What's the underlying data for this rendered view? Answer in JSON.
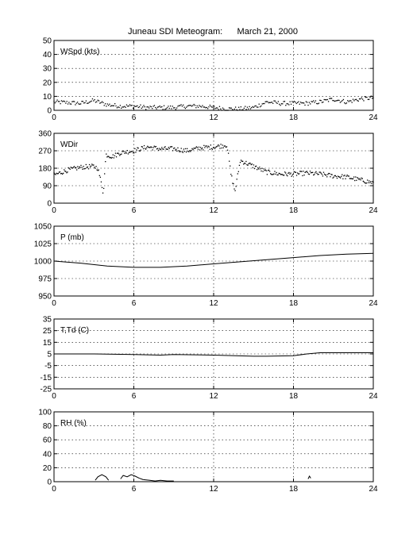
{
  "title": "Juneau SDI Meteogram:      March 21, 2000",
  "chart_data": [
    {
      "type": "scatter",
      "label": "WSpd (kts)",
      "xlim": [
        0,
        24
      ],
      "ylim": [
        0,
        50
      ],
      "xticks": [
        0,
        6,
        12,
        18,
        24
      ],
      "yticks": [
        0,
        10,
        20,
        30,
        40,
        50
      ],
      "grid": true,
      "keypoints": [
        [
          0,
          6
        ],
        [
          2,
          5
        ],
        [
          3,
          7
        ],
        [
          4,
          4
        ],
        [
          5,
          3
        ],
        [
          6,
          3
        ],
        [
          7,
          2
        ],
        [
          8,
          2
        ],
        [
          9,
          2
        ],
        [
          10,
          3
        ],
        [
          11,
          3
        ],
        [
          12,
          2
        ],
        [
          13,
          1
        ],
        [
          14,
          1
        ],
        [
          15,
          2
        ],
        [
          16,
          6
        ],
        [
          17,
          5
        ],
        [
          18,
          5
        ],
        [
          19,
          5
        ],
        [
          20,
          6
        ],
        [
          21,
          8
        ],
        [
          22,
          6
        ],
        [
          23,
          8
        ],
        [
          24,
          9
        ]
      ],
      "noise": 1.5,
      "n_points": 300
    },
    {
      "type": "scatter",
      "label": "WDir",
      "xlim": [
        0,
        24
      ],
      "ylim": [
        0,
        360
      ],
      "xticks": [
        0,
        6,
        12,
        18,
        24
      ],
      "yticks": [
        0,
        90,
        180,
        270,
        360
      ],
      "grid": true,
      "keypoints": [
        [
          0,
          145
        ],
        [
          1,
          170
        ],
        [
          2,
          185
        ],
        [
          3,
          190
        ],
        [
          3.3,
          180
        ],
        [
          3.6,
          90
        ],
        [
          3.7,
          50
        ],
        [
          3.9,
          250
        ],
        [
          4.4,
          240
        ],
        [
          5,
          260
        ],
        [
          6,
          270
        ],
        [
          7,
          290
        ],
        [
          8,
          280
        ],
        [
          9,
          280
        ],
        [
          10,
          270
        ],
        [
          11,
          285
        ],
        [
          12,
          290
        ],
        [
          13,
          300
        ],
        [
          13.3,
          150
        ],
        [
          13.6,
          60
        ],
        [
          14,
          220
        ],
        [
          15,
          190
        ],
        [
          16,
          160
        ],
        [
          17,
          150
        ],
        [
          18,
          150
        ],
        [
          19,
          155
        ],
        [
          20,
          150
        ],
        [
          21,
          140
        ],
        [
          22,
          135
        ],
        [
          23,
          120
        ],
        [
          24,
          105
        ]
      ],
      "noise": 12,
      "n_points": 380
    },
    {
      "type": "line",
      "label": "P (mb)",
      "xlim": [
        0,
        24
      ],
      "ylim": [
        950,
        1050
      ],
      "xticks": [
        0,
        6,
        12,
        18,
        24
      ],
      "yticks": [
        950,
        975,
        1000,
        1025,
        1050
      ],
      "grid": true,
      "x": [
        0,
        2,
        4,
        6,
        8,
        10,
        12,
        14,
        16,
        18,
        20,
        22,
        24
      ],
      "y": [
        1000,
        997,
        993,
        991,
        991,
        993,
        996,
        999,
        1002,
        1005,
        1008,
        1010,
        1011
      ]
    },
    {
      "type": "line",
      "label": "T,Td (C)",
      "xlim": [
        0,
        24
      ],
      "ylim": [
        -25,
        35
      ],
      "xticks": [
        0,
        6,
        12,
        18,
        24
      ],
      "yticks": [
        -25,
        -15,
        -5,
        5,
        15,
        25,
        35
      ],
      "grid": true,
      "x": [
        0,
        3,
        6,
        8,
        9,
        12,
        15,
        16,
        18,
        19,
        20,
        24
      ],
      "y": [
        5,
        5,
        4.5,
        4,
        4.5,
        4,
        3,
        3,
        3.5,
        5,
        6,
        6
      ]
    },
    {
      "type": "line",
      "label": "RH (%)",
      "xlim": [
        0,
        24
      ],
      "ylim": [
        0,
        100
      ],
      "xticks": [
        0,
        6,
        12,
        18,
        24
      ],
      "yticks": [
        0,
        20,
        40,
        60,
        80,
        100
      ],
      "grid": true,
      "segments": [
        {
          "x": [
            3.1,
            3.3,
            3.6,
            3.9,
            4.1
          ],
          "y": [
            2,
            7,
            10,
            7,
            2
          ]
        },
        {
          "x": [
            5.0,
            5.2,
            5.5,
            5.8,
            6.1,
            6.4,
            6.7
          ],
          "y": [
            4,
            9,
            7,
            10,
            8,
            5,
            3
          ]
        },
        {
          "x": [
            6.7,
            7.2,
            7.6,
            8.0,
            8.5,
            9.0
          ],
          "y": [
            3,
            2,
            1,
            2,
            1,
            1
          ]
        },
        {
          "x": [
            19.1,
            19.2,
            19.3
          ],
          "y": [
            4,
            8,
            5
          ]
        }
      ]
    }
  ]
}
